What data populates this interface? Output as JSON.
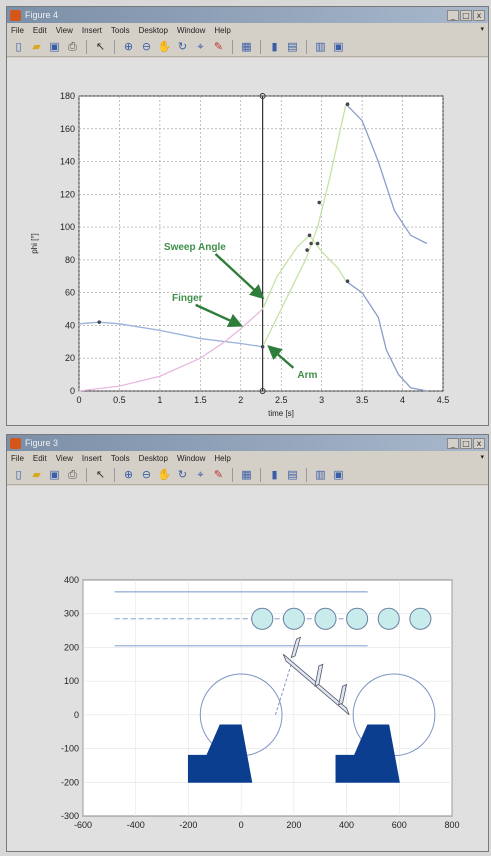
{
  "figure1": {
    "title": "Figure 4",
    "menu": [
      "File",
      "Edit",
      "View",
      "Insert",
      "Tools",
      "Desktop",
      "Window",
      "Help"
    ],
    "toolbar_icons": [
      "new-icon",
      "open-icon",
      "save-icon",
      "print-icon",
      "pointer-icon",
      "zoom-in-icon",
      "zoom-out-icon",
      "pan-icon",
      "rotate-icon",
      "data-cursor-icon",
      "brush-icon",
      "link-icon",
      "colorbar-icon",
      "legend-icon",
      "hide-tools-icon",
      "show-tools-icon"
    ],
    "window_buttons": [
      "_",
      "□",
      "x"
    ]
  },
  "figure2": {
    "title": "Figure 3",
    "menu": [
      "File",
      "Edit",
      "View",
      "Insert",
      "Tools",
      "Desktop",
      "Window",
      "Help"
    ],
    "toolbar_icons": [
      "new-icon",
      "open-icon",
      "save-icon",
      "print-icon",
      "pointer-icon",
      "zoom-in-icon",
      "zoom-out-icon",
      "pan-icon",
      "rotate-icon",
      "data-cursor-icon",
      "brush-icon",
      "link-icon",
      "colorbar-icon",
      "legend-icon",
      "hide-tools-icon",
      "show-tools-icon"
    ],
    "window_buttons": [
      "_",
      "□",
      "x"
    ]
  },
  "chart_data": [
    {
      "type": "line",
      "xlabel": "time [s]",
      "ylabel": "phi [°]",
      "xlim": [
        0,
        4.5
      ],
      "ylim": [
        0,
        180
      ],
      "xticks": [
        0,
        0.5,
        1,
        1.5,
        2,
        2.5,
        3,
        3.5,
        4,
        4.5
      ],
      "yticks": [
        0,
        20,
        40,
        60,
        80,
        100,
        120,
        140,
        160,
        180
      ],
      "xtick_labels": [
        "0",
        "0.5",
        "1",
        "1.5",
        "2",
        "2.5",
        "3",
        "3.5",
        "4",
        "4.5"
      ],
      "ytick_labels": [
        "0",
        "20",
        "40",
        "60",
        "80",
        "100",
        "120",
        "140",
        "160",
        "180"
      ],
      "grid": true,
      "cursor_time": 2.27,
      "series": [
        {
          "color": "#9ab2dc",
          "x": [
            0,
            0.25,
            0.5,
            1.0,
            1.5,
            2.0,
            2.27
          ],
          "y": [
            41,
            42,
            41,
            37,
            32,
            29,
            27
          ]
        },
        {
          "color": "#e7b8e0",
          "x": [
            0,
            0.5,
            1.0,
            1.5,
            1.8,
            2.0,
            2.27
          ],
          "y": [
            0,
            3,
            9,
            20,
            30,
            38,
            50
          ]
        },
        {
          "color": "#c6e3a6",
          "x": [
            2.27,
            2.4,
            2.6,
            2.8,
            2.95,
            3.1,
            3.3
          ],
          "y": [
            27,
            40,
            60,
            80,
            100,
            130,
            175
          ]
        },
        {
          "color": "#c6e3a6",
          "x": [
            2.27,
            2.45,
            2.7,
            2.85,
            3.0,
            3.2,
            3.3
          ],
          "y": [
            50,
            70,
            88,
            95,
            85,
            75,
            67
          ]
        },
        {
          "color": "#8a9cc8",
          "x": [
            3.3,
            3.5,
            3.7,
            3.9,
            4.1,
            4.3
          ],
          "y": [
            175,
            165,
            140,
            110,
            95,
            90
          ]
        },
        {
          "color": "#8a9cc8",
          "x": [
            3.3,
            3.5,
            3.7,
            3.8,
            3.95,
            4.1,
            4.3
          ],
          "y": [
            67,
            60,
            45,
            25,
            10,
            2,
            0
          ]
        }
      ],
      "markers": [
        {
          "x": 0.25,
          "y": 42
        },
        {
          "x": 2.27,
          "y": 27
        },
        {
          "x": 2.82,
          "y": 86
        },
        {
          "x": 2.85,
          "y": 95
        },
        {
          "x": 2.87,
          "y": 90
        },
        {
          "x": 2.95,
          "y": 90
        },
        {
          "x": 2.97,
          "y": 115
        },
        {
          "x": 3.32,
          "y": 175
        },
        {
          "x": 3.32,
          "y": 67
        }
      ],
      "annotations": [
        {
          "text": "Sweep Angle",
          "x": 1.05,
          "y": 86,
          "target_x": 2.27,
          "target_y": 57
        },
        {
          "text": "Finger",
          "x": 1.15,
          "y": 55,
          "target_x": 2.0,
          "target_y": 40
        },
        {
          "text": "Arm",
          "x": 2.7,
          "y": 8,
          "target_x": 2.35,
          "target_y": 27
        }
      ]
    },
    {
      "type": "scatter",
      "xlim": [
        -600,
        800
      ],
      "ylim": [
        -300,
        400
      ],
      "xticks": [
        -600,
        -400,
        -200,
        0,
        200,
        400,
        600,
        800
      ],
      "yticks": [
        -300,
        -200,
        -100,
        0,
        100,
        200,
        300,
        400
      ],
      "xtick_labels": [
        "-600",
        "-400",
        "-200",
        "0",
        "200",
        "400",
        "600",
        "800"
      ],
      "ytick_labels": [
        "-300",
        "-200",
        "-100",
        "0",
        "100",
        "200",
        "300",
        "400"
      ],
      "grid": true,
      "rails_y": [
        365,
        285,
        205
      ],
      "rails_x": [
        -480,
        480
      ],
      "circles_top": {
        "x": [
          80,
          200,
          320,
          440,
          560,
          680
        ],
        "y": 285,
        "r": 40
      },
      "arcs": [
        {
          "cx": 0,
          "cy": 0,
          "r": 155
        },
        {
          "cx": 580,
          "cy": 0,
          "r": 155
        }
      ]
    }
  ]
}
